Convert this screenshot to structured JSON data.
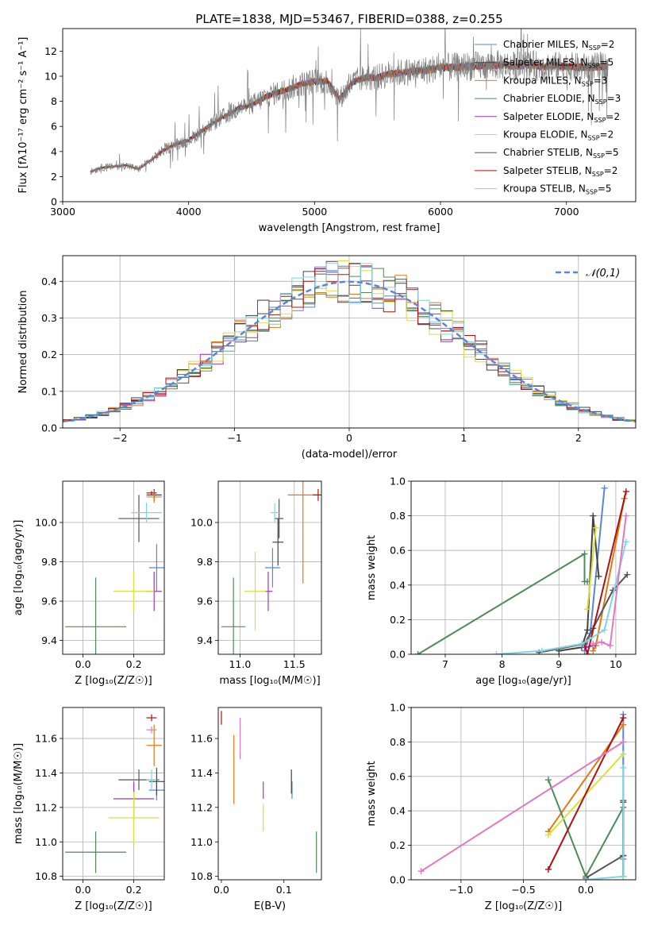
{
  "figure_title": "PLATE=1838, MJD=53467, FIBERID=0388, z=0.255",
  "models": [
    {
      "label": "Chabrier MILES, N",
      "nssp": "=2",
      "color": "#5b86d6"
    },
    {
      "label": "Salpeter MILES, N",
      "nssp": "=5",
      "color": "#444444"
    },
    {
      "label": "Kroupa MILES, N",
      "nssp": "=3",
      "color": "#e07b12"
    },
    {
      "label": "Chabrier ELODIE, N",
      "nssp": "=3",
      "color": "#4f8a5a"
    },
    {
      "label": "Salpeter ELODIE, N",
      "nssp": "=2",
      "color": "#9b39c0"
    },
    {
      "label": "Kroupa ELODIE, N",
      "nssp": "=2",
      "color": "#d8e03a"
    },
    {
      "label": "Chabrier STELIB, N",
      "nssp": "=5",
      "color": "#555555"
    },
    {
      "label": "Salpeter STELIB, N",
      "nssp": "=2",
      "color": "#b01010"
    },
    {
      "label": "Kroupa STELIB, N",
      "nssp": "=5",
      "color": "#7fd6e0"
    }
  ],
  "nssp_sub": "SSP",
  "chart_data": [
    {
      "id": "spectrum",
      "type": "line",
      "xlabel": "wavelength [Angstrom, rest frame]",
      "ylabel": "Flux [fλ10⁻¹⁷ erg cm⁻² s⁻¹ A⁻¹]",
      "xlim": [
        3000,
        7550
      ],
      "ylim": [
        0,
        13.8
      ],
      "xticks": [
        3000,
        4000,
        5000,
        6000,
        7000
      ],
      "yticks": [
        0,
        2,
        4,
        6,
        8,
        10,
        12
      ],
      "grid": false,
      "data_color": "#808080",
      "data_x": [
        3220,
        3300,
        3400,
        3500,
        3600,
        3700,
        3800,
        3900,
        4000,
        4100,
        4200,
        4300,
        4400,
        4500,
        4600,
        4700,
        4800,
        4900,
        5000,
        5100,
        5200,
        5300,
        5400,
        5500,
        5600,
        5700,
        5800,
        5900,
        6000,
        6100,
        6200,
        6300,
        6400,
        6500,
        6600,
        6700,
        6800,
        6900,
        7000,
        7100,
        7200,
        7300
      ],
      "data_y": [
        2.4,
        2.7,
        2.8,
        2.9,
        2.6,
        3.3,
        4.1,
        4.6,
        4.9,
        5.6,
        6.3,
        6.9,
        7.5,
        7.7,
        8.3,
        8.7,
        9.0,
        9.4,
        9.6,
        9.6,
        8.2,
        9.5,
        9.9,
        9.9,
        10.2,
        10.3,
        10.4,
        10.5,
        10.7,
        10.7,
        10.8,
        10.8,
        10.9,
        10.9,
        10.8,
        10.9,
        10.8,
        10.8,
        10.8,
        10.7,
        10.7,
        10.8
      ],
      "legend_position": "upper right"
    },
    {
      "id": "residual-histogram",
      "type": "histogram",
      "xlabel": "(data-model)/error",
      "ylabel": "Normed distribution",
      "xlim": [
        -2.5,
        2.5
      ],
      "ylim": [
        0,
        0.47
      ],
      "xticks": [
        -2,
        -1,
        0,
        1,
        2
      ],
      "yticks": [
        0.0,
        0.1,
        0.2,
        0.3,
        0.4
      ],
      "grid": true,
      "bin_width": 0.1,
      "reference_curve": "normal(0,1)",
      "reference_label": "𝒩(0,1)",
      "reference_color": "#5b86d6",
      "legend_position": "upper right"
    },
    {
      "id": "age-vs-Z",
      "type": "scatter",
      "xlabel": "Z [log₁₀(Z/Z☉)]",
      "ylabel": "age  [log₁₀(age/yr)]",
      "xlim": [
        -0.08,
        0.32
      ],
      "ylim": [
        9.33,
        10.21
      ],
      "xticks": [
        0.0,
        0.2
      ],
      "yticks": [
        9.4,
        9.6,
        9.8,
        10.0
      ],
      "grid": true,
      "points": [
        {
          "model": 0,
          "x": 0.29,
          "y": 9.77,
          "xerr": 0.03,
          "yerr": 0.12
        },
        {
          "model": 1,
          "x": 0.28,
          "y": 10.14,
          "xerr": 0.03,
          "yerr": 0.03
        },
        {
          "model": 2,
          "x": 0.28,
          "y": 10.13,
          "xerr": 0.03,
          "yerr": 0.03
        },
        {
          "model": 3,
          "x": 0.05,
          "y": 9.47,
          "xerr": 0.12,
          "yerr": 0.25
        },
        {
          "model": 4,
          "x": 0.28,
          "y": 9.65,
          "xerr": 0.03,
          "yerr": 0.1
        },
        {
          "model": 5,
          "x": 0.2,
          "y": 9.65,
          "xerr": 0.08,
          "yerr": 0.1
        },
        {
          "model": 6,
          "x": 0.22,
          "y": 10.02,
          "xerr": 0.08,
          "yerr": 0.12
        },
        {
          "model": 7,
          "x": 0.27,
          "y": 10.15,
          "xerr": 0.02,
          "yerr": 0.01
        },
        {
          "model": 8,
          "x": 0.25,
          "y": 10.05,
          "xerr": 0.06,
          "yerr": 0.05
        }
      ]
    },
    {
      "id": "age-vs-mass",
      "type": "scatter",
      "xlabel": "mass [log₁₀(M/M☉)]",
      "ylabel": "",
      "xlim": [
        10.8,
        11.75
      ],
      "ylim": [
        9.33,
        10.21
      ],
      "xticks": [
        11.0,
        11.5
      ],
      "yticks": [
        9.4,
        9.6,
        9.8,
        10.0
      ],
      "grid": true,
      "points": [
        {
          "model": 0,
          "x": 11.3,
          "y": 9.77,
          "xerr": 0.07,
          "yerr": 0.1
        },
        {
          "model": 1,
          "x": 11.35,
          "y": 9.9,
          "xerr": 0.05,
          "yerr": 0.12
        },
        {
          "model": 2,
          "x": 11.58,
          "y": 10.14,
          "xerr": 0.14,
          "yerr": 0.45
        },
        {
          "model": 3,
          "x": 10.94,
          "y": 9.47,
          "xerr": 0.11,
          "yerr": 0.25
        },
        {
          "model": 4,
          "x": 11.26,
          "y": 9.65,
          "xerr": 0.04,
          "yerr": 0.1
        },
        {
          "model": 5,
          "x": 11.14,
          "y": 9.65,
          "xerr": 0.1,
          "yerr": 0.2
        },
        {
          "model": 6,
          "x": 11.36,
          "y": 10.02,
          "xerr": 0.04,
          "yerr": 0.1
        },
        {
          "model": 7,
          "x": 11.72,
          "y": 10.14,
          "xerr": 0.05,
          "yerr": 0.03
        },
        {
          "model": 8,
          "x": 11.32,
          "y": 10.05,
          "xerr": 0.04,
          "yerr": 0.05
        }
      ]
    },
    {
      "id": "mass-weight-vs-age",
      "type": "line",
      "xlabel": "age  [log₁₀(age/yr)]",
      "ylabel": "mass weight",
      "xlim": [
        6.4,
        10.35
      ],
      "ylim": [
        0,
        1.0
      ],
      "xticks": [
        7,
        8,
        9,
        10
      ],
      "yticks": [
        0.0,
        0.2,
        0.4,
        0.6,
        0.8,
        1.0
      ],
      "grid": true,
      "series": [
        {
          "model": 0,
          "x": [
            9.45,
            9.55,
            9.8
          ],
          "y": [
            0.02,
            0.12,
            0.96
          ]
        },
        {
          "model": 1,
          "x": [
            9.0,
            9.4,
            9.5,
            9.6,
            9.7
          ],
          "y": [
            0.02,
            0.04,
            0.14,
            0.8,
            0.45
          ]
        },
        {
          "model": 2,
          "x": [
            9.6,
            9.65,
            10.15
          ],
          "y": [
            0.02,
            0.05,
            0.9
          ]
        },
        {
          "model": 3,
          "x": [
            6.52,
            9.45,
            9.45,
            9.5
          ],
          "y": [
            0.0,
            0.58,
            0.42,
            0.42
          ]
        },
        {
          "model": 4,
          "x": [
            9.45,
            9.6
          ],
          "y": [
            0.04,
            0.05
          ]
        },
        {
          "model": 5,
          "x": [
            9.5,
            9.65
          ],
          "y": [
            0.26,
            0.73
          ]
        },
        {
          "model": 6,
          "x": [
            8.65,
            9.45,
            9.6,
            9.95,
            10.2
          ],
          "y": [
            0.01,
            0.06,
            0.15,
            0.37,
            0.46
          ]
        },
        {
          "model": 7,
          "x": [
            9.45,
            9.5,
            10.18
          ],
          "y": [
            0.06,
            0.0,
            0.94
          ]
        },
        {
          "model": 8,
          "x": [
            7.9,
            8.7,
            9.4,
            9.8,
            10.18
          ],
          "y": [
            0.0,
            0.02,
            0.06,
            0.14,
            0.65
          ]
        },
        {
          "model": 9,
          "color": "#e377c2",
          "x": [
            9.6,
            9.75,
            9.9,
            10.18
          ],
          "y": [
            0.06,
            0.07,
            0.05,
            0.8
          ]
        }
      ]
    },
    {
      "id": "mass-vs-Z",
      "type": "scatter",
      "xlabel": "Z [log₁₀(Z/Z☉)]",
      "ylabel": "mass [log₁₀(M/M☉)]",
      "xlim": [
        -0.08,
        0.32
      ],
      "ylim": [
        10.78,
        11.78
      ],
      "xticks": [
        0.0,
        0.2
      ],
      "yticks": [
        10.8,
        11.0,
        11.2,
        11.4,
        11.6
      ],
      "grid": true,
      "points": [
        {
          "model": 0,
          "x": 0.29,
          "y": 11.3,
          "xerr": 0.03,
          "yerr": 0.06
        },
        {
          "model": 1,
          "x": 0.29,
          "y": 11.35,
          "xerr": 0.03,
          "yerr": 0.08
        },
        {
          "model": 2,
          "x": 0.28,
          "y": 11.56,
          "xerr": 0.03,
          "yerr": 0.12
        },
        {
          "model": 3,
          "x": 0.05,
          "y": 10.94,
          "xerr": 0.12,
          "yerr": 0.12
        },
        {
          "model": 4,
          "x": 0.2,
          "y": 11.25,
          "xerr": 0.08,
          "yerr": 0.1
        },
        {
          "model": 5,
          "x": 0.2,
          "y": 11.14,
          "xerr": 0.1,
          "yerr": 0.15
        },
        {
          "model": 6,
          "x": 0.22,
          "y": 11.36,
          "xerr": 0.08,
          "yerr": 0.06
        },
        {
          "model": 7,
          "x": 0.27,
          "y": 11.72,
          "xerr": 0.02,
          "yerr": 0.02
        },
        {
          "model": 8,
          "x": 0.27,
          "y": 11.36,
          "xerr": 0.02,
          "yerr": 0.06
        },
        {
          "model": 9,
          "color": "#e377c2",
          "x": 0.27,
          "y": 11.65,
          "xerr": 0.02,
          "yerr": 0.02
        }
      ]
    },
    {
      "id": "mass-vs-EBV",
      "type": "scatter",
      "xlabel": "E(B-V)",
      "ylabel": "",
      "xlim": [
        -0.005,
        0.16
      ],
      "ylim": [
        10.78,
        11.78
      ],
      "xticks": [
        0.0,
        0.1
      ],
      "yticks": [
        10.8,
        11.0,
        11.2,
        11.4,
        11.6
      ],
      "grid": false,
      "points": [
        {
          "model": 0,
          "x": 0.113,
          "y": 11.3,
          "xerr": 0,
          "yerr": 0.05
        },
        {
          "model": 1,
          "x": 0.112,
          "y": 11.35,
          "xerr": 0,
          "yerr": 0.07
        },
        {
          "model": 2,
          "x": 0.02,
          "y": 11.42,
          "xerr": 0,
          "yerr": 0.2
        },
        {
          "model": 3,
          "x": 0.152,
          "y": 10.94,
          "xerr": 0,
          "yerr": 0.12
        },
        {
          "model": 4,
          "x": 0.067,
          "y": 11.3,
          "xerr": 0,
          "yerr": 0.05
        },
        {
          "model": 5,
          "x": 0.067,
          "y": 11.14,
          "xerr": 0,
          "yerr": 0.08
        },
        {
          "model": 7,
          "x": 0.0,
          "y": 11.72,
          "xerr": 0,
          "yerr": 0.04
        },
        {
          "model": 9,
          "color": "#e377c2",
          "x": 0.03,
          "y": 11.6,
          "xerr": 0,
          "yerr": 0.12
        }
      ]
    },
    {
      "id": "mass-weight-vs-Z",
      "type": "line",
      "xlabel": "Z [log₁₀(Z/Z☉)]",
      "ylabel": "mass weight",
      "xlim": [
        -1.4,
        0.4
      ],
      "ylim": [
        0,
        1.0
      ],
      "xticks": [
        -1.0,
        -0.5,
        0.0
      ],
      "yticks": [
        0.0,
        0.2,
        0.4,
        0.6,
        0.8,
        1.0
      ],
      "grid": true,
      "series": [
        {
          "model": 0,
          "x": [
            0.3,
            0.3,
            0.3
          ],
          "y": [
            0.02,
            0.12,
            0.96
          ]
        },
        {
          "model": 1,
          "x": [
            0.3,
            0.3,
            0.3
          ],
          "y": [
            0.02,
            0.14,
            0.45
          ]
        },
        {
          "model": 2,
          "x": [
            -0.3,
            0.3
          ],
          "y": [
            0.28,
            0.9
          ]
        },
        {
          "model": 3,
          "x": [
            -0.3,
            0.0,
            0.3
          ],
          "y": [
            0.58,
            0.02,
            0.42
          ]
        },
        {
          "model": 5,
          "x": [
            -0.3,
            0.3
          ],
          "y": [
            0.26,
            0.73
          ]
        },
        {
          "model": 6,
          "x": [
            0.0,
            0.3,
            0.3
          ],
          "y": [
            0.01,
            0.14,
            0.46
          ]
        },
        {
          "model": 7,
          "x": [
            -0.3,
            0.3
          ],
          "y": [
            0.06,
            0.94
          ]
        },
        {
          "model": 8,
          "x": [
            0.0,
            0.3,
            0.3
          ],
          "y": [
            0.0,
            0.02,
            0.65
          ]
        },
        {
          "model": 9,
          "color": "#e377c2",
          "x": [
            -1.32,
            0.3
          ],
          "y": [
            0.05,
            0.8
          ]
        }
      ]
    }
  ]
}
